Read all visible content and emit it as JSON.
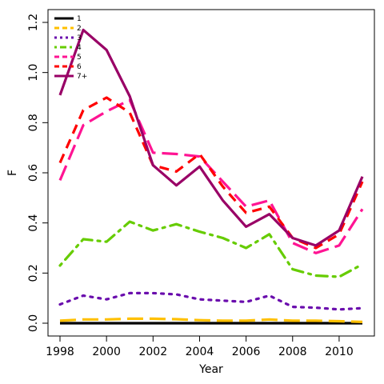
{
  "chart_data": {
    "type": "line",
    "title": "",
    "xlabel": "Year",
    "ylabel": "F",
    "xlim": [
      1998,
      2011
    ],
    "ylim": [
      0,
      1.2
    ],
    "x_ticks": [
      "1998",
      "2000",
      "2002",
      "2004",
      "2006",
      "2008",
      "2010"
    ],
    "y_ticks": [
      "0.0",
      "0.2",
      "0.4",
      "0.6",
      "0.8",
      "1.0",
      "1.2"
    ],
    "grid": false,
    "legend_position": "top-left",
    "x": [
      1998,
      1999,
      2000,
      2001,
      2002,
      2003,
      2004,
      2005,
      2006,
      2007,
      2008,
      2009,
      2010,
      2011
    ],
    "series": [
      {
        "name": "1",
        "color": "#000000",
        "dash": "solid",
        "values": [
          0.0,
          0.0,
          0.0,
          0.0,
          0.0,
          0.0,
          0.0,
          0.0,
          0.0,
          0.0,
          0.0,
          0.0,
          0.0,
          0.0
        ]
      },
      {
        "name": "2",
        "color": "#FFC000",
        "dash": "longdash",
        "values": [
          0.01,
          0.015,
          0.015,
          0.018,
          0.018,
          0.016,
          0.012,
          0.01,
          0.01,
          0.015,
          0.01,
          0.01,
          0.008,
          0.005
        ]
      },
      {
        "name": "3",
        "color": "#6A0DAD",
        "dash": "dotted",
        "values": [
          0.075,
          0.11,
          0.095,
          0.12,
          0.12,
          0.115,
          0.095,
          0.09,
          0.085,
          0.11,
          0.065,
          0.062,
          0.055,
          0.06
        ]
      },
      {
        "name": "4",
        "color": "#66CC00",
        "dash": "dotdash",
        "values": [
          0.23,
          0.335,
          0.325,
          0.405,
          0.37,
          0.395,
          0.365,
          0.34,
          0.3,
          0.355,
          0.215,
          0.19,
          0.185,
          0.235
        ]
      },
      {
        "name": "5",
        "color": "#FF1493",
        "dash": "longdash",
        "values": [
          0.57,
          0.79,
          0.845,
          0.89,
          0.68,
          0.675,
          0.665,
          0.565,
          0.465,
          0.49,
          0.32,
          0.28,
          0.31,
          0.455
        ]
      },
      {
        "name": "6",
        "color": "#FF0000",
        "dash": "dashed",
        "values": [
          0.64,
          0.85,
          0.9,
          0.84,
          0.63,
          0.605,
          0.675,
          0.545,
          0.44,
          0.465,
          0.34,
          0.3,
          0.355,
          0.565
        ]
      },
      {
        "name": "7+",
        "color": "#990066",
        "dash": "solid",
        "values": [
          0.91,
          1.17,
          1.09,
          0.905,
          0.63,
          0.55,
          0.625,
          0.49,
          0.385,
          0.435,
          0.34,
          0.31,
          0.37,
          0.585
        ]
      }
    ]
  }
}
